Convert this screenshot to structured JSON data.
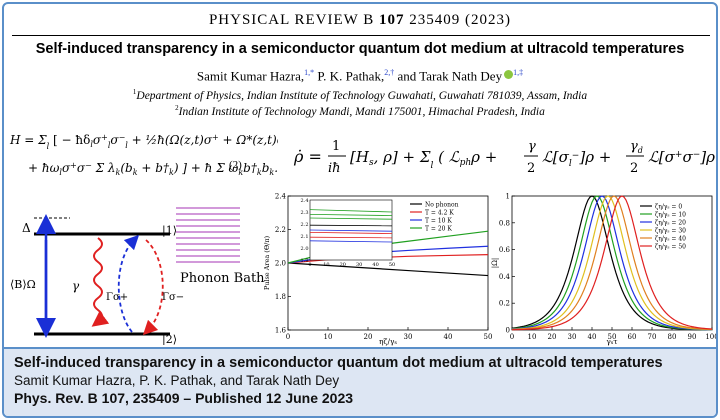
{
  "header": {
    "journal": "PHYSICAL REVIEW B",
    "volume": "107",
    "article": "235409 (2023)"
  },
  "paper": {
    "title": "Self-induced transparency in a semiconductor quantum dot medium at ultracold temperatures",
    "authors": [
      {
        "name": "Samit Kumar Hazra,",
        "marks": "1,*"
      },
      {
        "name": "P. K. Pathak,",
        "marks": "2,†"
      },
      {
        "name": "and Tarak Nath Dey",
        "marks": "1,‡"
      }
    ],
    "affiliations": [
      {
        "mark": "1",
        "text": "Department of Physics, Indian Institute of Technology Guwahati, Guwahati 781039, Assam, India"
      },
      {
        "mark": "2",
        "text": "Indian Institute of Technology Mandi, Mandi 175001, Himachal Pradesh, India"
      }
    ]
  },
  "equations": {
    "eq_number": "(2)"
  },
  "diagram": {
    "delta": "Δ",
    "rabi": "⟨B⟩Ω",
    "gamma": "γ",
    "gamma_plus": "Γσ+",
    "gamma_minus": "Γσ−",
    "level1": "|1⟩",
    "level2": "|2⟩",
    "phonon_bath": "Phonon Bath"
  },
  "chart_data": [
    {
      "type": "line",
      "xlabel": "ηζ/γₛ",
      "ylabel": "Pulse Area (Θ/π)",
      "xlim": [
        0,
        50
      ],
      "ylim": [
        1.6,
        2.4
      ],
      "x_ticks": [
        0,
        10,
        20,
        30,
        40,
        50
      ],
      "y_ticks": [
        1.6,
        1.8,
        2.0,
        2.2,
        2.4
      ],
      "legend_position": "top-right",
      "series": [
        {
          "name": "No phonon",
          "color": "#000000",
          "x": [
            0,
            10,
            20,
            30,
            40,
            50
          ],
          "values": [
            2.0,
            1.985,
            1.97,
            1.955,
            1.94,
            1.925
          ]
        },
        {
          "name": "T = 4.2 K",
          "color": "#e02020",
          "x": [
            0,
            10,
            20,
            30,
            40,
            50
          ],
          "values": [
            2.0,
            2.02,
            2.03,
            2.04,
            2.045,
            2.05
          ]
        },
        {
          "name": "T = 10 K",
          "color": "#2030e0",
          "x": [
            0,
            10,
            20,
            30,
            40,
            50
          ],
          "values": [
            2.0,
            2.035,
            2.06,
            2.075,
            2.088,
            2.1
          ]
        },
        {
          "name": "T = 20 K",
          "color": "#20a020",
          "x": [
            0,
            10,
            20,
            30,
            40,
            50
          ],
          "values": [
            2.0,
            2.06,
            2.1,
            2.13,
            2.16,
            2.19
          ]
        }
      ],
      "inset": {
        "xlim": [
          0,
          50
        ],
        "ylim": [
          1.9,
          2.4
        ],
        "x_ticks": [
          0,
          10,
          20,
          30,
          40,
          50
        ],
        "y_ticks": [
          1.9,
          2.0,
          2.1,
          2.2,
          2.3,
          2.4
        ],
        "lines": [
          {
            "color": "#000000",
            "values": [
              2.19,
              2.185
            ]
          },
          {
            "color": "#e02020",
            "values": [
              2.13,
              2.12
            ]
          },
          {
            "color": "#e02020",
            "values": [
              2.09,
              2.085
            ]
          },
          {
            "color": "#2030e0",
            "values": [
              2.15,
              2.14
            ]
          },
          {
            "color": "#2030e0",
            "values": [
              2.06,
              2.05
            ]
          },
          {
            "color": "#20a020",
            "values": [
              2.32,
              2.3
            ]
          },
          {
            "color": "#20a020",
            "values": [
              2.28,
              2.27
            ]
          },
          {
            "color": "#20a020",
            "values": [
              2.25,
              2.24
            ]
          }
        ]
      }
    },
    {
      "type": "line",
      "xlabel": "γₛτ",
      "ylabel": "|Ω|",
      "xlim": [
        0,
        100
      ],
      "ylim": [
        0,
        1
      ],
      "x_ticks": [
        0,
        10,
        20,
        30,
        40,
        50,
        60,
        70,
        80,
        90,
        100
      ],
      "y_ticks": [
        0,
        0.2,
        0.4,
        0.6,
        0.8,
        1
      ],
      "legend_position": "top-right",
      "series": [
        {
          "name": "ζη/γₛ = 0",
          "color": "#000000",
          "center": 40,
          "width": 8
        },
        {
          "name": "ζη/γₛ = 10",
          "color": "#20a020",
          "center": 42.5,
          "width": 8
        },
        {
          "name": "ζη/γₛ = 20",
          "color": "#2030e0",
          "center": 45,
          "width": 8
        },
        {
          "name": "ζη/γₛ = 30",
          "color": "#e0c020",
          "center": 48,
          "width": 8
        },
        {
          "name": "ζη/γₛ = 40",
          "color": "#e08020",
          "center": 51,
          "width": 8
        },
        {
          "name": "ζη/γₛ = 50",
          "color": "#e02020",
          "center": 55,
          "width": 8
        }
      ]
    }
  ],
  "banner": {
    "title": "Self-induced transparency in a semiconductor quantum dot medium at ultracold temperatures",
    "authors": "Samit Kumar Hazra, P. K. Pathak, and Tarak Nath Dey",
    "citation": "Phys. Rev. B 107, 235409 – Published 12 June 2023"
  }
}
